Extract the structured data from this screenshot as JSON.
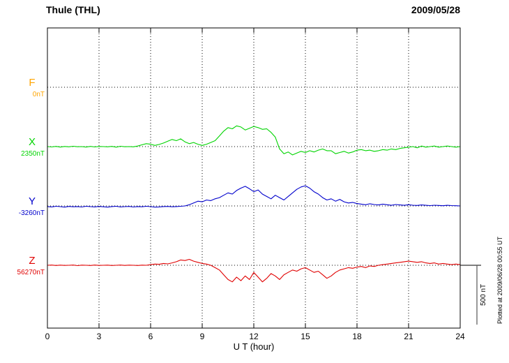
{
  "header": {
    "station": "Thule (THL)",
    "date": "2009/05/28"
  },
  "axis": {
    "xlabel": "U T (hour)",
    "xmin": 0,
    "xmax": 24,
    "ticks": [
      0,
      3,
      6,
      9,
      12,
      15,
      18,
      21,
      24
    ]
  },
  "scale_bar": {
    "label": "500 nT",
    "nT": 500
  },
  "watermark": "Plotted at 2009/06/28 00:55 UT",
  "colors": {
    "frame": "#000000",
    "grid": "#000000",
    "F": "#ffa500",
    "X": "#00d400",
    "Y": "#0000cc",
    "Z": "#e00000"
  },
  "chart_data": {
    "type": "line",
    "title": "Thule (THL) magnetogram 2009/05/28",
    "xlabel": "U T (hour)",
    "x_range": [
      0,
      24
    ],
    "x_step_hours": 0.25,
    "grid": "dotted",
    "scale_nT_per_div": 500,
    "series": [
      {
        "name": "F",
        "baseline_label": "0nT",
        "color": "#ffa500",
        "unit": "nT deviation from baseline",
        "values": []
      },
      {
        "name": "X",
        "baseline_label": "2350nT",
        "color": "#00d400",
        "unit": "nT deviation from baseline",
        "values": [
          0,
          -3,
          2,
          -4,
          1,
          -2,
          3,
          -1,
          0,
          -4,
          2,
          -3,
          1,
          0,
          -2,
          2,
          -5,
          3,
          -1,
          0,
          -2,
          5,
          15,
          25,
          20,
          10,
          18,
          30,
          45,
          60,
          50,
          65,
          40,
          25,
          35,
          20,
          10,
          20,
          35,
          50,
          90,
          130,
          160,
          150,
          175,
          165,
          140,
          155,
          170,
          160,
          145,
          150,
          120,
          80,
          -20,
          -60,
          -45,
          -70,
          -55,
          -40,
          -50,
          -35,
          -45,
          -30,
          -20,
          -35,
          -35,
          -60,
          -50,
          -40,
          -55,
          -45,
          -30,
          -25,
          -35,
          -30,
          -40,
          -35,
          -25,
          -30,
          -20,
          -25,
          -15,
          -10,
          -5,
          0,
          -10,
          5,
          -5,
          0,
          5,
          -5,
          0,
          5,
          0,
          -5,
          0
        ]
      },
      {
        "name": "Y",
        "baseline_label": "-3260nT",
        "color": "#0000cc",
        "unit": "nT deviation from baseline",
        "values": [
          -5,
          -8,
          -3,
          -6,
          -10,
          -4,
          -7,
          -5,
          -9,
          -3,
          -6,
          -8,
          -4,
          -7,
          -10,
          -5,
          -3,
          -8,
          -6,
          -4,
          -9,
          -5,
          -7,
          -3,
          -6,
          -10,
          -8,
          -5,
          -4,
          -7,
          -5,
          -3,
          0,
          10,
          25,
          40,
          35,
          50,
          45,
          60,
          70,
          90,
          110,
          100,
          130,
          150,
          165,
          145,
          120,
          135,
          100,
          80,
          60,
          90,
          70,
          50,
          80,
          110,
          140,
          160,
          170,
          150,
          120,
          100,
          70,
          50,
          60,
          40,
          55,
          35,
          25,
          30,
          20,
          15,
          10,
          18,
          12,
          8,
          15,
          10,
          5,
          12,
          8,
          5,
          10,
          6,
          4,
          8,
          5,
          3,
          6,
          4,
          2,
          5,
          3,
          2,
          0
        ]
      },
      {
        "name": "Z",
        "baseline_label": "56270nT",
        "color": "#e00000",
        "unit": "nT deviation from baseline",
        "values": [
          0,
          2,
          -2,
          1,
          -1,
          0,
          2,
          -3,
          1,
          0,
          -2,
          2,
          -1,
          0,
          1,
          -2,
          0,
          2,
          -1,
          1,
          0,
          -2,
          1,
          0,
          5,
          10,
          8,
          15,
          12,
          20,
          30,
          45,
          40,
          50,
          35,
          25,
          15,
          10,
          0,
          -20,
          -40,
          -80,
          -120,
          -140,
          -100,
          -130,
          -90,
          -120,
          -60,
          -100,
          -140,
          -110,
          -70,
          -90,
          -120,
          -80,
          -60,
          -40,
          -50,
          -30,
          -20,
          -40,
          -60,
          -50,
          -80,
          -110,
          -90,
          -60,
          -40,
          -30,
          -20,
          -25,
          -15,
          -10,
          -20,
          -5,
          -10,
          0,
          5,
          10,
          15,
          20,
          25,
          30,
          35,
          30,
          25,
          30,
          20,
          15,
          20,
          10,
          15,
          10,
          5,
          10,
          5
        ]
      }
    ]
  }
}
